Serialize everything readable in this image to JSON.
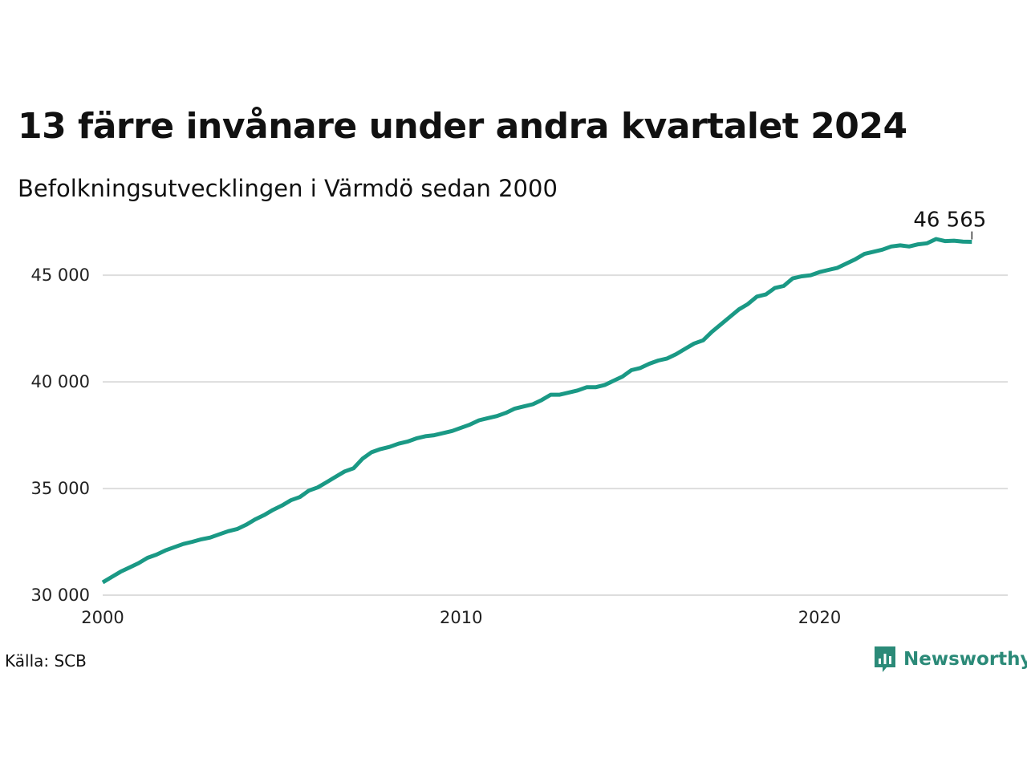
{
  "header": {
    "title": "13 färre invånare under andra kvartalet 2024",
    "subtitle": "Befolkningsutvecklingen i Värmdö sedan 2000"
  },
  "footer": {
    "source": "Källa: SCB",
    "brand": "Newsworthy",
    "brand_icon": "bar-chart-icon"
  },
  "colors": {
    "line": "#1a9985",
    "grid": "#dddddd",
    "brand": "#2b8a78"
  },
  "chart_data": {
    "type": "line",
    "title": "13 färre invånare under andra kvartalet 2024",
    "subtitle": "Befolkningsutvecklingen i Värmdö sedan 2000",
    "xlabel": "",
    "ylabel": "",
    "xlim": [
      2000,
      2025.25
    ],
    "ylim": [
      29700,
      47300
    ],
    "x_ticks": [
      2000,
      2010,
      2020
    ],
    "x_tick_labels": [
      "2000",
      "2010",
      "2020"
    ],
    "y_ticks": [
      30000,
      35000,
      40000,
      45000
    ],
    "y_tick_labels": [
      "30 000",
      "35 000",
      "40 000",
      "45 000"
    ],
    "grid": "horizontal",
    "end_label": "46 565",
    "series": [
      {
        "x": [
          2000.0,
          2000.25,
          2000.5,
          2000.75,
          2001.0,
          2001.25,
          2001.5,
          2001.75,
          2002.0,
          2002.25,
          2002.5,
          2002.75,
          2003.0,
          2003.25,
          2003.5,
          2003.75,
          2004.0,
          2004.25,
          2004.5,
          2004.75,
          2005.0,
          2005.25,
          2005.5,
          2005.75,
          2006.0,
          2006.25,
          2006.5,
          2006.75,
          2007.0,
          2007.25,
          2007.5,
          2007.75,
          2008.0,
          2008.25,
          2008.5,
          2008.75,
          2009.0,
          2009.25,
          2009.5,
          2009.75,
          2010.0,
          2010.25,
          2010.5,
          2010.75,
          2011.0,
          2011.25,
          2011.5,
          2011.75,
          2012.0,
          2012.25,
          2012.5,
          2012.75,
          2013.0,
          2013.25,
          2013.5,
          2013.75,
          2014.0,
          2014.25,
          2014.5,
          2014.75,
          2015.0,
          2015.25,
          2015.5,
          2015.75,
          2016.0,
          2016.25,
          2016.5,
          2016.75,
          2017.0,
          2017.25,
          2017.5,
          2017.75,
          2018.0,
          2018.25,
          2018.5,
          2018.75,
          2019.0,
          2019.25,
          2019.5,
          2019.75,
          2020.0,
          2020.25,
          2020.5,
          2020.75,
          2021.0,
          2021.25,
          2021.5,
          2021.75,
          2022.0,
          2022.25,
          2022.5,
          2022.75,
          2023.0,
          2023.25,
          2023.5,
          2023.75,
          2024.0,
          2024.25
        ],
        "values": [
          30600,
          30850,
          31100,
          31300,
          31500,
          31750,
          31900,
          32100,
          32250,
          32400,
          32500,
          32620,
          32700,
          32850,
          33000,
          33100,
          33300,
          33550,
          33750,
          34000,
          34200,
          34450,
          34600,
          34900,
          35050,
          35300,
          35550,
          35800,
          35950,
          36400,
          36700,
          36850,
          36950,
          37100,
          37200,
          37350,
          37450,
          37500,
          37600,
          37700,
          37850,
          38000,
          38200,
          38300,
          38400,
          38550,
          38750,
          38850,
          38950,
          39150,
          39400,
          39400,
          39500,
          39600,
          39750,
          39750,
          39850,
          40050,
          40250,
          40550,
          40650,
          40850,
          41000,
          41100,
          41300,
          41550,
          41800,
          41950,
          42350,
          42700,
          43050,
          43400,
          43650,
          44000,
          44100,
          44400,
          44500,
          44850,
          44950,
          45000,
          45150,
          45250,
          45350,
          45550,
          45750,
          46000,
          46100,
          46200,
          46350,
          46400,
          46350,
          46450,
          46500,
          46700,
          46600,
          46620,
          46578,
          46565
        ]
      }
    ]
  }
}
